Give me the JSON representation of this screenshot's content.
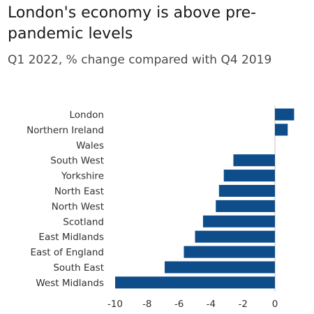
{
  "chart_data": {
    "type": "bar",
    "orientation": "horizontal",
    "title": "London's economy is above pre-pandemic levels",
    "subtitle": "Q1 2022, % change compared with Q4 2019",
    "categories": [
      "London",
      "Northern Ireland",
      "Wales",
      "South West",
      "Yorkshire",
      "North East",
      "North West",
      "Scotland",
      "East Midlands",
      "East of England",
      "South East",
      "West Midlands"
    ],
    "values": [
      1.2,
      0.8,
      0,
      -2.6,
      -3.2,
      -3.5,
      -3.7,
      -4.5,
      -5.0,
      -5.7,
      -6.9,
      -10.0
    ],
    "x_ticks": [
      "-10",
      "-8",
      "-6",
      "-4",
      "-2",
      "0"
    ],
    "x_tick_values": [
      -10,
      -8,
      -6,
      -4,
      -2,
      0
    ],
    "xlim": [
      -10.4,
      1.3
    ],
    "xlabel": "",
    "ylabel": "",
    "grid": false,
    "colors": {
      "bar": "#0f4c8a",
      "text": "#33302e",
      "background": "#ffffff"
    }
  }
}
